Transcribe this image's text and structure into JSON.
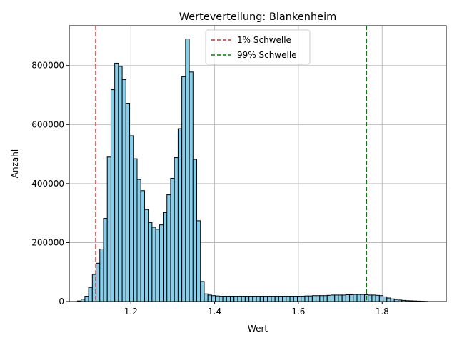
{
  "chart_data": {
    "type": "bar",
    "title": "Werteverteilung: Blankenheim",
    "xlabel": "Wert",
    "ylabel": "Anzahl",
    "xlim": [
      1.053,
      1.953
    ],
    "ylim": [
      0,
      935000
    ],
    "xticks": [
      1.2,
      1.4,
      1.6,
      1.8
    ],
    "xtick_labels": [
      "1.2",
      "1.4",
      "1.6",
      "1.8"
    ],
    "yticks": [
      0,
      200000,
      400000,
      600000,
      800000
    ],
    "ytick_labels": [
      "0",
      "200000",
      "400000",
      "600000",
      "800000"
    ],
    "grid": true,
    "bar_color": "#87ceeb",
    "bar_edge_color": "#000000",
    "bins": {
      "start": 1.0725,
      "width": 0.0089,
      "counts": [
        2000,
        8000,
        18000,
        48000,
        92000,
        130000,
        178000,
        282000,
        490000,
        718000,
        808000,
        797000,
        752000,
        672000,
        562000,
        484000,
        414000,
        376000,
        312000,
        268000,
        252000,
        245000,
        260000,
        302000,
        362000,
        418000,
        488000,
        586000,
        762000,
        890000,
        778000,
        482000,
        274000,
        68000,
        26000,
        22000,
        20000,
        19000,
        18000,
        18000,
        18000,
        18000,
        18000,
        18000,
        18000,
        18000,
        18000,
        18000,
        18000,
        18000,
        18000,
        18000,
        18000,
        18000,
        18000,
        18000,
        18000,
        18000,
        18000,
        18000,
        18000,
        19000,
        19000,
        20000,
        20000,
        20000,
        20000,
        21000,
        22000,
        22000,
        22000,
        22000,
        23000,
        23000,
        24000,
        24000,
        24000,
        23000,
        22000,
        22000,
        21000,
        20000,
        16000,
        12000,
        9000,
        7000,
        5000,
        4000,
        3000,
        2500,
        2000,
        1500,
        1000,
        500
      ]
    },
    "reference_lines": [
      {
        "name": "1% Schwelle",
        "x": 1.1162,
        "color": "#d62728",
        "style": "dashed"
      },
      {
        "name": "99% Schwelle",
        "x": 1.7627,
        "color": "#008000",
        "style": "dashed"
      }
    ],
    "legend_position": "top-center"
  }
}
